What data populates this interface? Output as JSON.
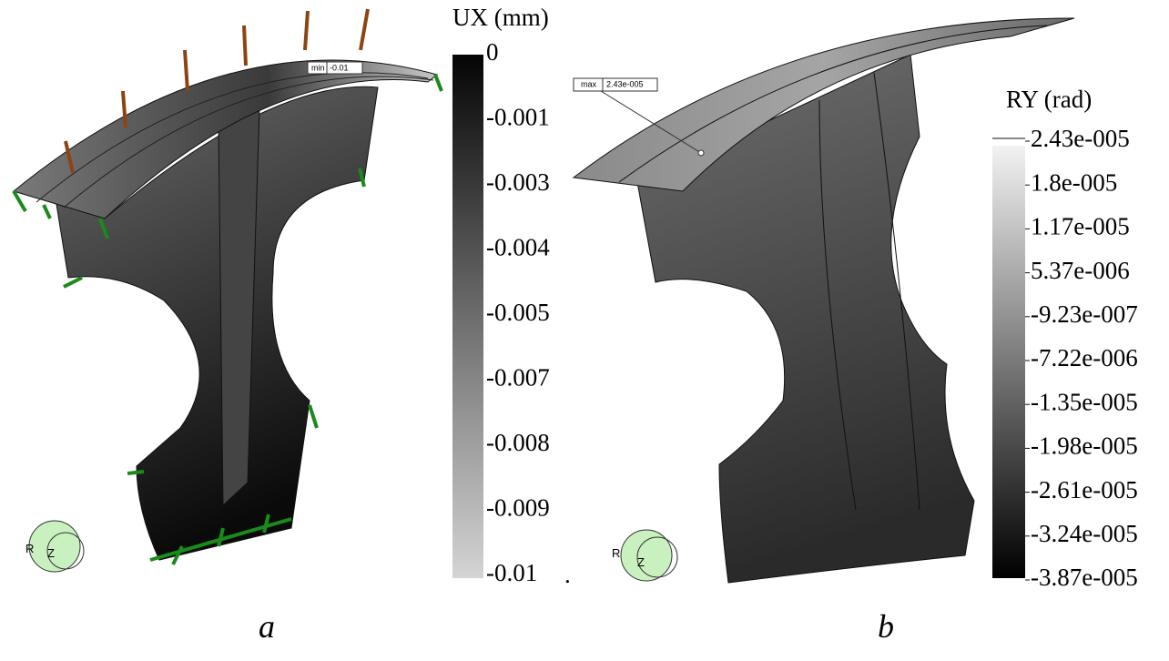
{
  "panels": [
    {
      "caption": "a",
      "legend": {
        "title": "UX (mm)",
        "ticks": [
          "0",
          "-0.001",
          "-0.003",
          "-0.004",
          "-0.005",
          "-0.007",
          "-0.008",
          "-0.009",
          "-0.01"
        ]
      },
      "probe": {
        "tag": "min",
        "value": "-0.01"
      },
      "triad": [
        "R",
        "Z"
      ],
      "mark": "."
    },
    {
      "caption": "b",
      "legend": {
        "title": "RY (rad)",
        "ticks": [
          "2.43e-005",
          "1.8e-005",
          "1.17e-005",
          "5.37e-006",
          "-9.23e-007",
          "-7.22e-006",
          "-1.35e-005",
          "-1.98e-005",
          "-2.61e-005",
          "-3.24e-005",
          "-3.87e-005"
        ]
      },
      "probe": {
        "tag": "max",
        "value": "2.43e-005"
      },
      "triad": [
        "R",
        "Z"
      ]
    }
  ]
}
